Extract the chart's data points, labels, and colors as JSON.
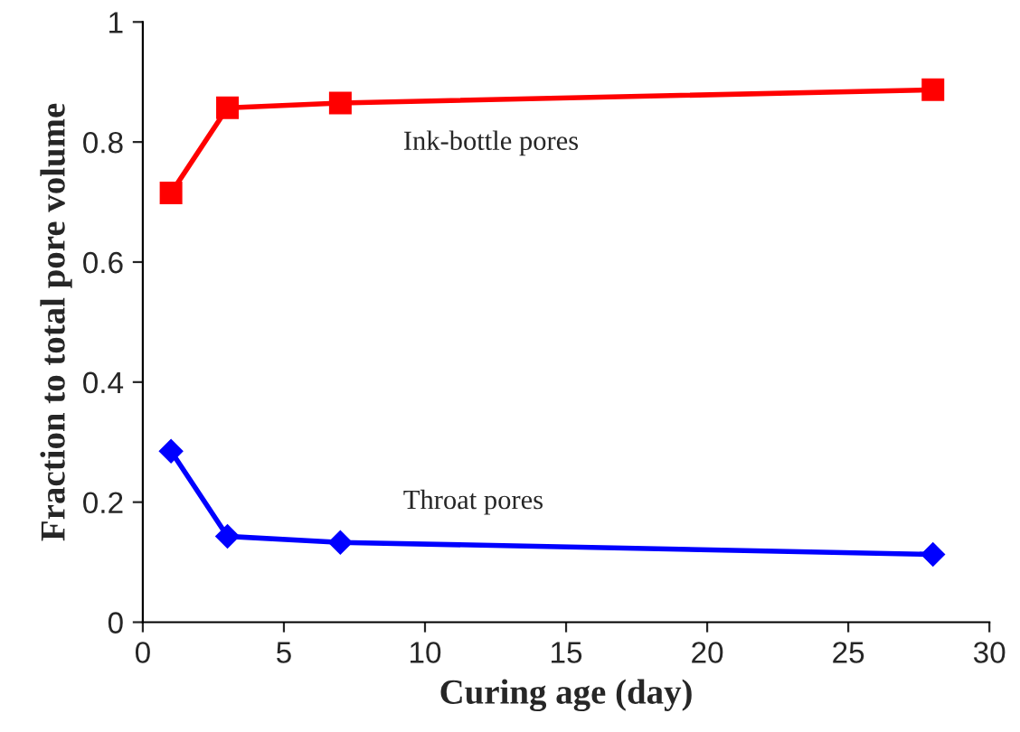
{
  "chart_data": {
    "type": "line",
    "xlabel": "Curing age (day)",
    "ylabel": "Fraction to total pore volume",
    "series": [
      {
        "name": "Ink-bottle pores",
        "color": "#ff0000",
        "marker": "square",
        "x": [
          1,
          3,
          7,
          28
        ],
        "values": [
          0.715,
          0.857,
          0.865,
          0.887
        ]
      },
      {
        "name": "Throat pores",
        "color": "#0000ff",
        "marker": "diamond",
        "x": [
          1,
          3,
          7,
          28
        ],
        "values": [
          0.285,
          0.143,
          0.133,
          0.113
        ]
      }
    ],
    "xlim": [
      0,
      30
    ],
    "xticks": [
      0,
      5,
      10,
      15,
      20,
      25,
      30
    ],
    "ylim": [
      0,
      1
    ],
    "yticks": [
      0,
      0.2,
      0.4,
      0.6,
      0.8,
      1
    ],
    "grid": false,
    "legend": false,
    "line_style": "solid"
  }
}
